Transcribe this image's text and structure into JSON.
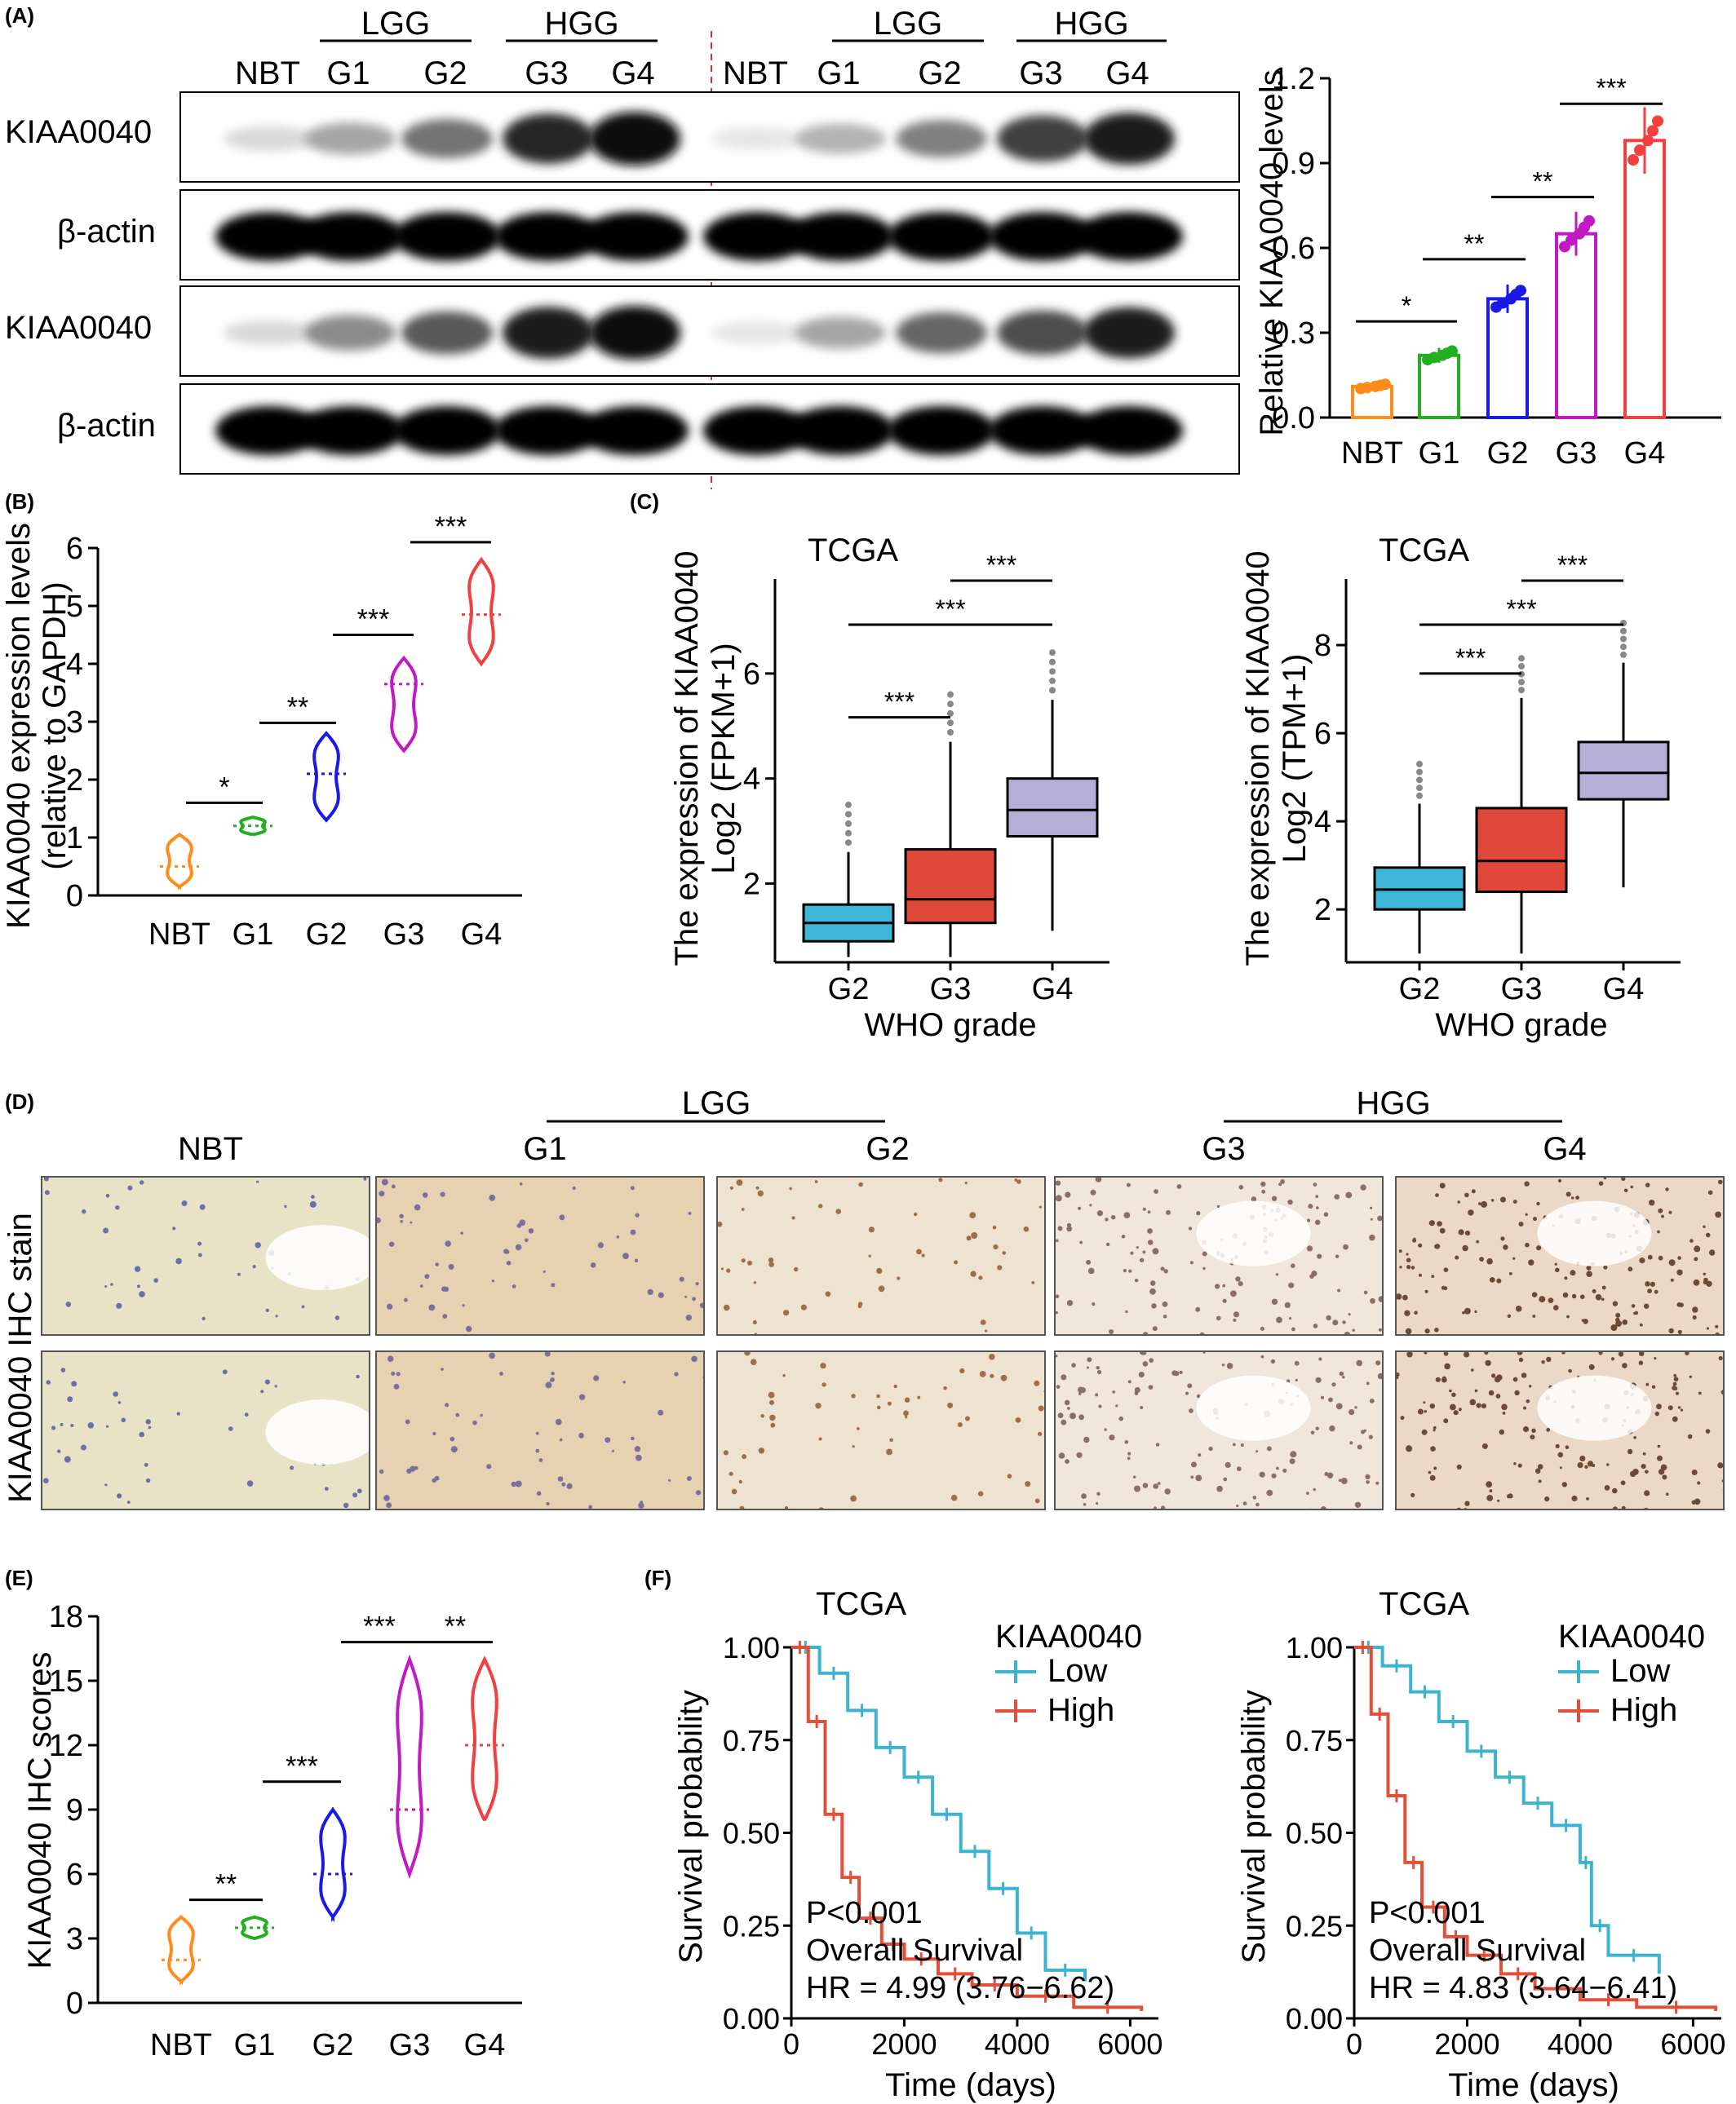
{
  "panels": {
    "A": "(A)",
    "B": "(B)",
    "C": "(C)",
    "D": "(D)",
    "E": "(E)",
    "F": "(F)"
  },
  "blot": {
    "groups": [
      "LGG",
      "HGG",
      "LGG",
      "HGG"
    ],
    "lanes": [
      "NBT",
      "G1",
      "G2",
      "G3",
      "G4",
      "NBT",
      "G1",
      "G2",
      "G3",
      "G4"
    ],
    "rows": [
      "KIAA0040",
      "β-actin",
      "KIAA0040",
      "β-actin"
    ],
    "intensity_top": [
      0.15,
      0.35,
      0.55,
      0.85,
      0.95,
      0.1,
      0.3,
      0.5,
      0.75,
      0.9
    ],
    "intensity_bottom": [
      0.15,
      0.45,
      0.65,
      0.9,
      0.95,
      0.1,
      0.35,
      0.6,
      0.7,
      0.88
    ]
  },
  "chart_data": [
    {
      "panel": "A",
      "type": "bar",
      "ylabel": "Relative KIAA0040 levels",
      "ylim": [
        0,
        1.2
      ],
      "yticks": [
        "0.0",
        "0.3",
        "0.6",
        "0.9",
        "1.2"
      ],
      "categories": [
        "NBT",
        "G1",
        "G2",
        "G3",
        "G4"
      ],
      "values": [
        0.11,
        0.22,
        0.42,
        0.65,
        0.98
      ],
      "colors": [
        "#FF8C1A",
        "#22B022",
        "#1A1AE6",
        "#C21AC2",
        "#F04040"
      ],
      "significance": [
        "*",
        "**",
        "**",
        "***"
      ]
    },
    {
      "panel": "B",
      "type": "violin",
      "ylabel": "KIAA0040 expression levels",
      "ylabel2": "(relative to GAPDH)",
      "ylim": [
        0,
        6
      ],
      "yticks": [
        "0",
        "1",
        "2",
        "3",
        "4",
        "5",
        "6"
      ],
      "categories": [
        "NBT",
        "G1",
        "G2",
        "G3",
        "G4"
      ],
      "ranges": [
        [
          0.15,
          1.05
        ],
        [
          1.05,
          1.35
        ],
        [
          1.3,
          2.8
        ],
        [
          2.5,
          4.1
        ],
        [
          4,
          5.8
        ]
      ],
      "medians": [
        0.5,
        1.2,
        2.1,
        3.65,
        4.85
      ],
      "colors": [
        "#FF8C1A",
        "#22B022",
        "#1A1AE6",
        "#C21AC2",
        "#F04040"
      ],
      "significance": [
        "*",
        "**",
        "***",
        "***"
      ]
    },
    {
      "panel": "C1",
      "type": "box",
      "title": "TCGA",
      "ylabel": "The expression of KIAA0040",
      "ylabel2": "Log2 (FPKM+1)",
      "xlabel": "WHO grade",
      "ylim": [
        0.5,
        7.8
      ],
      "yticks": [
        "2",
        "4",
        "6"
      ],
      "categories": [
        "G2",
        "G3",
        "G4"
      ],
      "boxes": [
        [
          0.9,
          1.25,
          1.6,
          0.6,
          2.6
        ],
        [
          1.25,
          1.7,
          2.65,
          0.6,
          4.7
        ],
        [
          2.9,
          3.4,
          4.0,
          1.1,
          5.5
        ]
      ],
      "colors": [
        "#3FB7D6",
        "#E0483A",
        "#B4AED8"
      ],
      "significance": [
        "***",
        "***",
        "***"
      ]
    },
    {
      "panel": "C2",
      "type": "box",
      "title": "TCGA",
      "ylabel": "The expression of KIAA0040",
      "ylabel2": "Log2 (TPM+1)",
      "xlabel": "WHO grade",
      "ylim": [
        0.8,
        9.5
      ],
      "yticks": [
        "2",
        "4",
        "6",
        "8"
      ],
      "categories": [
        "G2",
        "G3",
        "G4"
      ],
      "boxes": [
        [
          2.0,
          2.45,
          2.95,
          1.0,
          4.4
        ],
        [
          2.4,
          3.1,
          4.3,
          1.0,
          6.8
        ],
        [
          4.5,
          5.1,
          5.8,
          2.5,
          7.6
        ]
      ],
      "colors": [
        "#3FB7D6",
        "#E0483A",
        "#B4AED8"
      ],
      "significance": [
        "***",
        "***",
        "***"
      ]
    },
    {
      "panel": "E",
      "type": "violin",
      "ylabel": "KIAA0040 IHC scores",
      "ylim": [
        0,
        18
      ],
      "yticks": [
        "0",
        "3",
        "6",
        "9",
        "12",
        "15",
        "18"
      ],
      "categories": [
        "NBT",
        "G1",
        "G2",
        "G3",
        "G4"
      ],
      "ranges": [
        [
          1,
          4
        ],
        [
          3,
          4
        ],
        [
          4,
          9
        ],
        [
          6,
          16
        ],
        [
          8.5,
          16
        ]
      ],
      "medians": [
        2,
        3.5,
        6,
        9,
        12
      ],
      "colors": [
        "#FF8C1A",
        "#22B022",
        "#1A1AE6",
        "#C21AC2",
        "#F04040"
      ],
      "significance": [
        "**",
        "***",
        "***",
        "**"
      ]
    },
    {
      "panel": "F1",
      "type": "line",
      "title": "TCGA",
      "ylabel": "Survival probability",
      "xlabel": "Time (days)",
      "xlim": [
        0,
        6500
      ],
      "xticks": [
        "0",
        "2000",
        "4000",
        "6000"
      ],
      "ylim": [
        0,
        1
      ],
      "yticks": [
        "0.00",
        "0.25",
        "0.50",
        "0.75",
        "1.00"
      ],
      "legend_title": "KIAA0040",
      "series": [
        {
          "name": "Low",
          "color": "#3CB4D0",
          "x": [
            0,
            500,
            1000,
            1500,
            2000,
            2500,
            3000,
            3500,
            4000,
            4500,
            5200
          ],
          "y": [
            1,
            0.93,
            0.83,
            0.73,
            0.65,
            0.55,
            0.45,
            0.35,
            0.23,
            0.13,
            0.1
          ]
        },
        {
          "name": "High",
          "color": "#E2503A",
          "x": [
            0,
            300,
            600,
            900,
            1200,
            1600,
            2000,
            2600,
            3200,
            4000,
            5000,
            6200
          ],
          "y": [
            1,
            0.8,
            0.55,
            0.38,
            0.27,
            0.2,
            0.16,
            0.12,
            0.09,
            0.06,
            0.03,
            0.02
          ]
        }
      ],
      "annot": [
        "P<0.001",
        "Overall Survival",
        "HR = 4.99 (3.76−6.62)"
      ]
    },
    {
      "panel": "F2",
      "type": "line",
      "title": "TCGA",
      "ylabel": "Survival probability",
      "xlabel": "Time (days)",
      "xlim": [
        0,
        6500
      ],
      "xticks": [
        "0",
        "2000",
        "4000",
        "6000"
      ],
      "ylim": [
        0,
        1
      ],
      "yticks": [
        "0.00",
        "0.25",
        "0.50",
        "0.75",
        "1.00"
      ],
      "legend_title": "KIAA0040",
      "series": [
        {
          "name": "Low",
          "color": "#3CB4D0",
          "x": [
            0,
            500,
            1000,
            1500,
            2000,
            2500,
            3000,
            3500,
            4000,
            4200,
            4500,
            5400
          ],
          "y": [
            1,
            0.95,
            0.88,
            0.8,
            0.72,
            0.65,
            0.58,
            0.52,
            0.42,
            0.25,
            0.17,
            0.12
          ]
        },
        {
          "name": "High",
          "color": "#E2503A",
          "x": [
            0,
            300,
            600,
            900,
            1200,
            1600,
            2000,
            2600,
            3200,
            4000,
            5000,
            6400
          ],
          "y": [
            1,
            0.82,
            0.6,
            0.42,
            0.3,
            0.22,
            0.17,
            0.12,
            0.08,
            0.05,
            0.03,
            0.02
          ]
        }
      ],
      "annot": [
        "P<0.001",
        "Overall Survival",
        "HR = 4.83 (3.64−6.41)"
      ]
    }
  ],
  "ihc": {
    "group_labels": [
      "LGG",
      "HGG"
    ],
    "col_labels": [
      "NBT",
      "G1",
      "G2",
      "G3",
      "G4"
    ],
    "row_label": "KIAA0040 IHC stain",
    "tile_colors": [
      "#E8E2C6",
      "#E6D2B0",
      "#EEE2D0",
      "#F1E6DC",
      "#EBD8C6"
    ]
  }
}
